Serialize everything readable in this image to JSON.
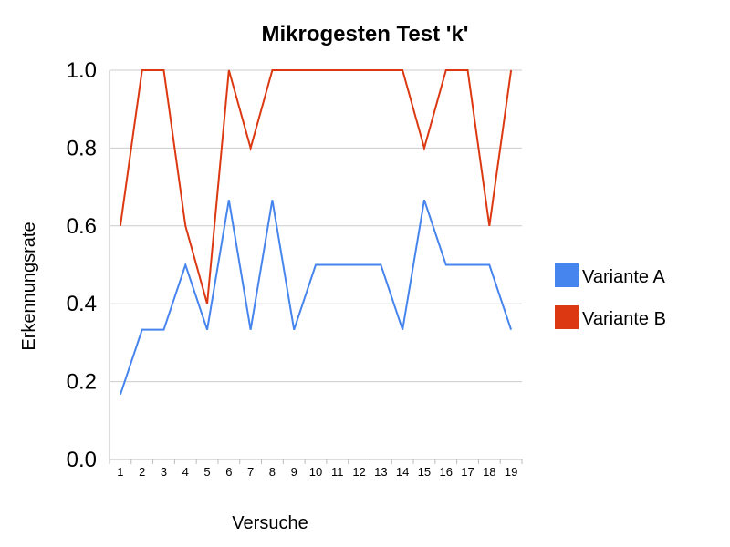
{
  "chart_data": {
    "type": "line",
    "title": "Mikrogesten Test 'k'",
    "xlabel": "Versuche",
    "ylabel": "Erkennungsrate",
    "categories": [
      "1",
      "2",
      "3",
      "4",
      "5",
      "6",
      "7",
      "8",
      "9",
      "10",
      "11",
      "12",
      "13",
      "14",
      "15",
      "16",
      "17",
      "18",
      "19"
    ],
    "ylim": [
      0,
      1
    ],
    "yticks": [
      "0.0",
      "0.2",
      "0.4",
      "0.6",
      "0.8",
      "1.0"
    ],
    "grid": true,
    "legend_position": "right",
    "series": [
      {
        "name": "Variante A",
        "color": "#4684ee",
        "values": [
          0.1667,
          0.3333,
          0.3333,
          0.5,
          0.3333,
          0.6667,
          0.3333,
          0.6667,
          0.3333,
          0.5,
          0.5,
          0.5,
          0.5,
          0.3333,
          0.6667,
          0.5,
          0.5,
          0.5,
          0.3333
        ]
      },
      {
        "name": "Variante B",
        "color": "#dc3912",
        "values": [
          0.6,
          1.0,
          1.0,
          0.6,
          0.4,
          1.0,
          0.8,
          1.0,
          1.0,
          1.0,
          1.0,
          1.0,
          1.0,
          1.0,
          0.8,
          1.0,
          1.0,
          0.6,
          1.0
        ]
      }
    ]
  }
}
